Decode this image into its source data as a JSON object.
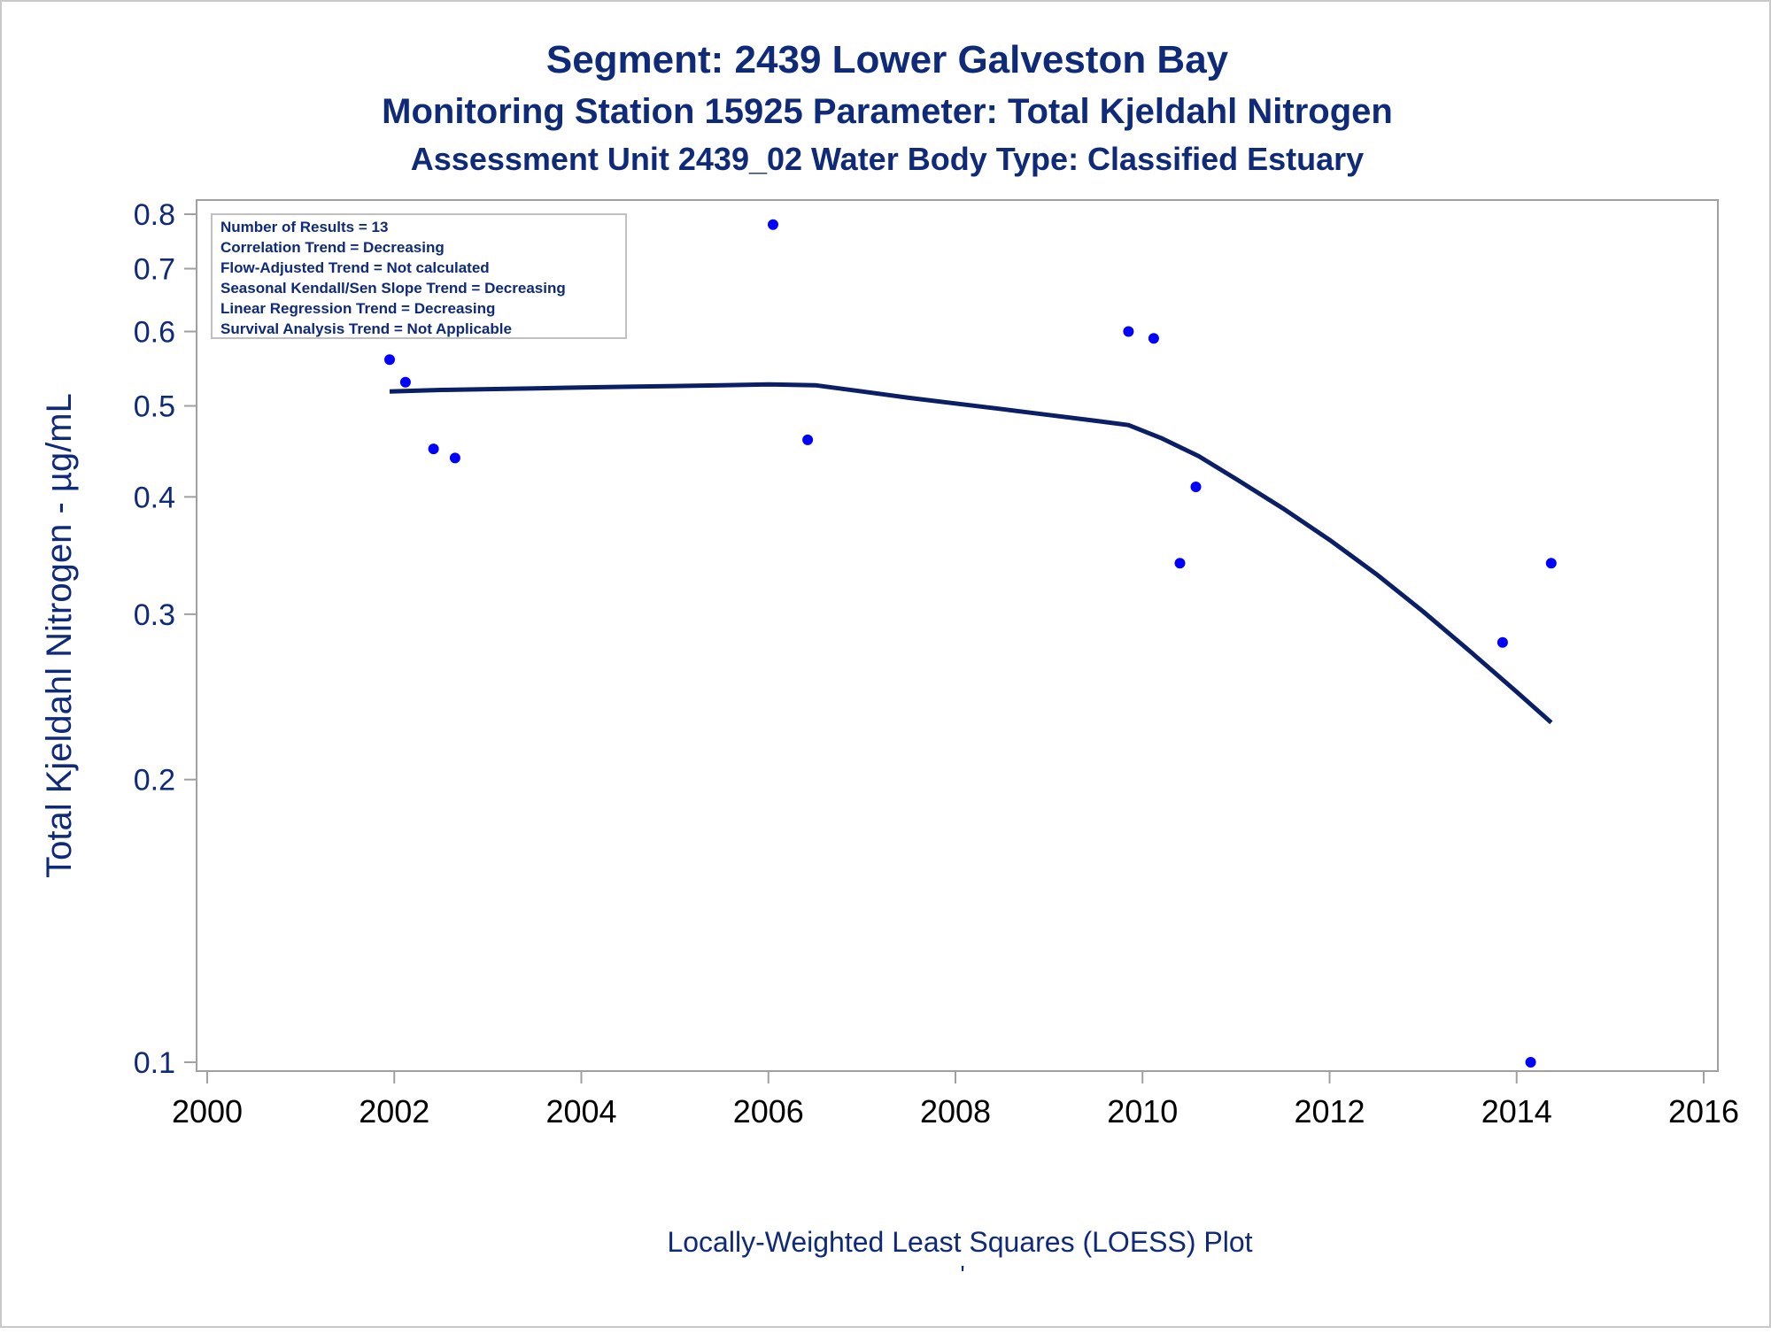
{
  "titles": {
    "line1": "Segment: 2439  Lower Galveston Bay",
    "line2": "Monitoring Station 15925 Parameter: Total Kjeldahl Nitrogen",
    "line3": "Assessment Unit 2439_02   Water Body Type: Classified Estuary"
  },
  "footer": {
    "caption": "Locally-Weighted Least Squares (LOESS) Plot",
    "mark": "'"
  },
  "stats": [
    "Number of Results = 13",
    "Correlation Trend = Decreasing",
    "Flow-Adjusted Trend = Not calculated",
    "Seasonal Kendall/Sen Slope Trend = Decreasing",
    "Linear Regression Trend = Decreasing",
    "Survival Analysis Trend = Not Applicable"
  ],
  "colors": {
    "text": "#0f2a78",
    "points": "#0000ff",
    "loess_line": "#0a1f66",
    "frame": "#a0a0a0"
  },
  "chart_data": {
    "type": "scatter",
    "ylabel": "Total Kjeldahl Nitrogen -  µg/mL",
    "xlabel": "",
    "y_scale": "log",
    "xlim": [
      2000,
      2016
    ],
    "ylim": [
      0.095,
      0.83
    ],
    "x_ticks": [
      2000,
      2002,
      2004,
      2006,
      2008,
      2010,
      2012,
      2014,
      2016
    ],
    "x_tick_labels": [
      "2000",
      "2002",
      "2004",
      "2006",
      "2008",
      "2010",
      "2012",
      "2014",
      "2016"
    ],
    "y_ticks": [
      0.1,
      0.2,
      0.3,
      0.4,
      0.5,
      0.6,
      0.7,
      0.8
    ],
    "y_tick_labels": [
      "0.1",
      "0.2",
      "0.3",
      "0.4",
      "0.5",
      "0.6",
      "0.7",
      "0.8"
    ],
    "legend_position": "top-left",
    "points": [
      {
        "x": 2001.95,
        "y": 0.56
      },
      {
        "x": 2002.12,
        "y": 0.53
      },
      {
        "x": 2002.42,
        "y": 0.45
      },
      {
        "x": 2002.65,
        "y": 0.44
      },
      {
        "x": 2006.05,
        "y": 0.78
      },
      {
        "x": 2006.42,
        "y": 0.46
      },
      {
        "x": 2009.85,
        "y": 0.6
      },
      {
        "x": 2010.12,
        "y": 0.59
      },
      {
        "x": 2010.4,
        "y": 0.34
      },
      {
        "x": 2010.57,
        "y": 0.41
      },
      {
        "x": 2013.85,
        "y": 0.28
      },
      {
        "x": 2014.15,
        "y": 0.1
      },
      {
        "x": 2014.37,
        "y": 0.34
      }
    ],
    "loess": {
      "x": [
        2001.95,
        2002.5,
        2003.0,
        2003.5,
        2004.0,
        2004.5,
        2005.0,
        2005.5,
        2006.0,
        2006.5,
        2007.0,
        2007.5,
        2008.0,
        2008.5,
        2009.0,
        2009.5,
        2009.85,
        2010.2,
        2010.6,
        2011.0,
        2011.5,
        2012.0,
        2012.5,
        2013.0,
        2013.5,
        2014.0,
        2014.37
      ],
      "y": [
        0.518,
        0.52,
        0.521,
        0.522,
        0.523,
        0.524,
        0.525,
        0.526,
        0.527,
        0.526,
        0.518,
        0.51,
        0.503,
        0.496,
        0.489,
        0.482,
        0.477,
        0.462,
        0.442,
        0.418,
        0.389,
        0.36,
        0.331,
        0.302,
        0.274,
        0.248,
        0.23
      ]
    }
  }
}
